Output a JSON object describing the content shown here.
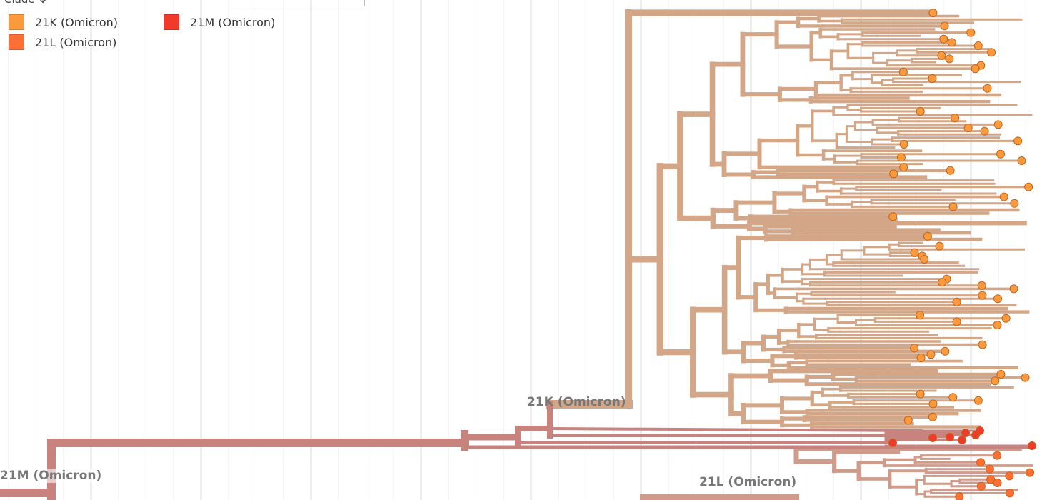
{
  "legend": {
    "title": "Clade",
    "items": [
      {
        "label": "21K (Omicron)",
        "color": "#fb9a3d"
      },
      {
        "label": "21L (Omicron)",
        "color": "#fd6f35"
      },
      {
        "label": "21M (Omicron)",
        "color": "#ef3a2c"
      }
    ]
  },
  "tree": {
    "clade_labels": {
      "k": "21K (Omicron)",
      "l": "21L (Omicron)",
      "m": "21M (Omicron)"
    },
    "branch_colors": {
      "k": "#d2a686",
      "l": "#cf9c8c",
      "m": "#c9837f"
    },
    "tip_colors": {
      "k": "#fb9a3d",
      "l": "#fd6f35",
      "m": "#ef3a2c"
    }
  }
}
